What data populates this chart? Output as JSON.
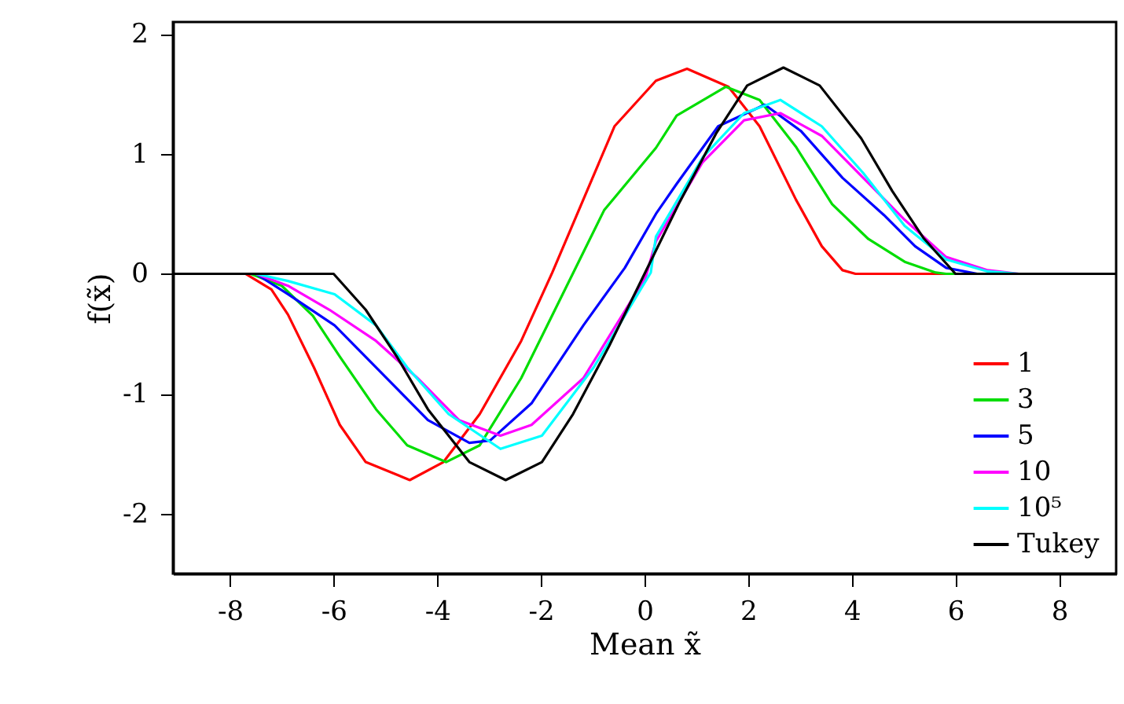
{
  "chart_data": {
    "type": "line",
    "xlabel": "Mean x̃",
    "ylabel": "f(x̃)",
    "xlim": [
      -9.1,
      9.1
    ],
    "ylim": [
      -2.5,
      2.1
    ],
    "xticks": [
      -8,
      -6,
      -4,
      -2,
      0,
      2,
      4,
      6,
      8
    ],
    "yticks": [
      -2,
      -1,
      0,
      1,
      2
    ],
    "grid": false,
    "legend": "bottom right",
    "marker": "none",
    "line_style": "solid",
    "series": [
      {
        "name": "1",
        "color": "#ff0000",
        "x": [
          -9.1,
          -7.7,
          -7.2,
          -6.88,
          -6.38,
          -5.88,
          -5.38,
          -4.53,
          -3.88,
          -3.18,
          -2.38,
          -1.78,
          -1.18,
          -0.58,
          0.22,
          0.82,
          1.62,
          2.22,
          2.92,
          3.42,
          3.82,
          4.07,
          9.1
        ],
        "values": [
          0,
          0,
          -0.13,
          -0.34,
          -0.78,
          -1.26,
          -1.57,
          -1.72,
          -1.57,
          -1.17,
          -0.56,
          0.01,
          0.62,
          1.23,
          1.61,
          1.71,
          1.56,
          1.23,
          0.62,
          0.23,
          0.03,
          0,
          0
        ]
      },
      {
        "name": "3",
        "color": "#00dd00",
        "x": [
          -9.1,
          -7.6,
          -7.0,
          -6.4,
          -5.88,
          -5.18,
          -4.58,
          -3.83,
          -3.18,
          -2.38,
          -1.58,
          -0.78,
          0.22,
          0.62,
          1.57,
          2.22,
          2.92,
          3.62,
          4.32,
          5.02,
          5.62,
          5.82,
          9.1
        ],
        "values": [
          0,
          0,
          -0.1,
          -0.35,
          -0.69,
          -1.13,
          -1.43,
          -1.57,
          -1.43,
          -0.87,
          -0.17,
          0.53,
          1.05,
          1.32,
          1.56,
          1.45,
          1.06,
          0.58,
          0.29,
          0.1,
          0.01,
          0,
          0
        ]
      },
      {
        "name": "5",
        "color": "#0000ff",
        "x": [
          -9.1,
          -7.5,
          -6.88,
          -5.98,
          -5.18,
          -4.18,
          -3.38,
          -2.98,
          -2.18,
          -1.18,
          -0.38,
          0.22,
          0.62,
          1.42,
          2.32,
          3.02,
          3.82,
          4.62,
          5.22,
          5.82,
          6.42,
          9.1
        ],
        "values": [
          0,
          0,
          -0.17,
          -0.43,
          -0.78,
          -1.22,
          -1.41,
          -1.39,
          -1.08,
          -0.43,
          0.05,
          0.5,
          0.75,
          1.23,
          1.41,
          1.19,
          0.8,
          0.49,
          0.23,
          0.05,
          0,
          0
        ]
      },
      {
        "name": "10",
        "color": "#ff00ff",
        "x": [
          -9.1,
          -7.5,
          -6.88,
          -6.08,
          -5.18,
          -4.38,
          -3.58,
          -2.78,
          -2.18,
          -1.18,
          0.02,
          0.22,
          1.12,
          1.92,
          2.62,
          3.42,
          4.22,
          5.02,
          5.82,
          6.62,
          7.22,
          9.1
        ],
        "values": [
          0,
          0,
          -0.1,
          -0.3,
          -0.56,
          -0.87,
          -1.22,
          -1.35,
          -1.26,
          -0.87,
          -0.03,
          0.27,
          0.93,
          1.28,
          1.34,
          1.15,
          0.8,
          0.45,
          0.14,
          0.03,
          0,
          0
        ]
      },
      {
        "name": "10⁵",
        "color": "#00ffff",
        "x": [
          -9.1,
          -7.5,
          -6.88,
          -5.98,
          -5.18,
          -4.58,
          -3.78,
          -2.78,
          -1.98,
          -0.98,
          0.12,
          0.22,
          1.12,
          1.92,
          2.62,
          3.42,
          4.22,
          5.02,
          5.82,
          6.62,
          7.22,
          9.1
        ],
        "values": [
          0,
          0,
          -0.06,
          -0.17,
          -0.43,
          -0.78,
          -1.17,
          -1.46,
          -1.35,
          -0.78,
          0.01,
          0.31,
          0.97,
          1.34,
          1.45,
          1.23,
          0.84,
          0.4,
          0.12,
          0.02,
          0,
          0
        ]
      },
      {
        "name": "Tukey",
        "color": "#000000",
        "x": [
          -9.1,
          -6,
          -5.38,
          -4.78,
          -4.18,
          -3.38,
          -2.68,
          -1.98,
          -1.38,
          -0.68,
          0,
          0.68,
          1.38,
          1.98,
          2.68,
          3.38,
          4.18,
          4.78,
          5.38,
          6,
          9.1
        ],
        "values": [
          0,
          0,
          -0.3,
          -0.69,
          -1.13,
          -1.57,
          -1.72,
          -1.57,
          -1.17,
          -0.6,
          0,
          0.6,
          1.17,
          1.57,
          1.72,
          1.57,
          1.13,
          0.69,
          0.3,
          0,
          0
        ]
      }
    ]
  }
}
